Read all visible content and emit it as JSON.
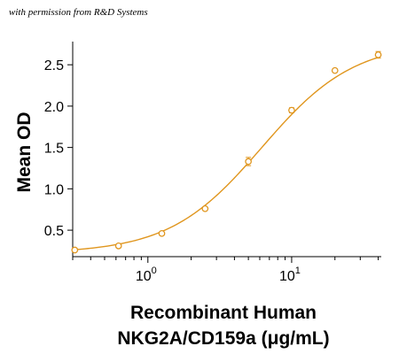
{
  "note": "with permission from R&D Systems",
  "chart_data": {
    "type": "scatter",
    "xlabel_lines": [
      "Recombinant Human",
      "NKG2A/CD159a (μg/mL)"
    ],
    "ylabel": "Mean OD",
    "x_scale": "log10",
    "xlim": [
      0.3,
      42
    ],
    "ylim": [
      0.18,
      2.78
    ],
    "y_ticks": [
      0.5,
      1.0,
      1.5,
      2.0,
      2.5
    ],
    "y_tick_labels": [
      "0.5",
      "1.0",
      "1.5",
      "2.0",
      "2.5"
    ],
    "x_ticks": [
      {
        "value": 1,
        "base": "10",
        "exp": "0"
      },
      {
        "value": 10,
        "base": "10",
        "exp": "1"
      }
    ],
    "grid": false,
    "color": "#E0961E",
    "series": [
      {
        "x": [
          0.31,
          0.625,
          1.25,
          2.5,
          5,
          10,
          20,
          40
        ],
        "y": [
          0.26,
          0.31,
          0.46,
          0.76,
          1.33,
          1.95,
          2.43,
          2.62
        ],
        "err": [
          0.02,
          0.02,
          0.02,
          0.02,
          0.05,
          0.03,
          0.02,
          0.04
        ]
      }
    ],
    "fit": {
      "bottom": 0.22,
      "top": 2.78,
      "ec50": 6.2,
      "hill": 1.35
    }
  }
}
